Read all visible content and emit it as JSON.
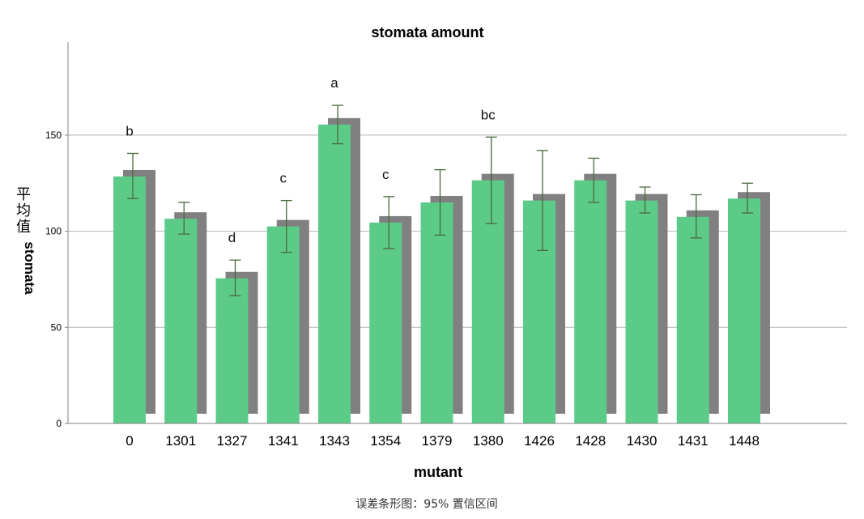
{
  "chart_data": {
    "type": "bar",
    "title": "stomata amount",
    "xlabel": "mutant",
    "ylabel_prefix": "平均值",
    "ylabel_var": "stomata",
    "footnote": "误差条形图：95% 置信区间",
    "ylim": [
      0,
      195
    ],
    "yticks": [
      0,
      50,
      100,
      150
    ],
    "grid": true,
    "categories": [
      "0",
      "1301",
      "1327",
      "1341",
      "1343",
      "1354",
      "1379",
      "1380",
      "1426",
      "1428",
      "1430",
      "1431",
      "1448"
    ],
    "values": [
      128.5,
      106.5,
      75.5,
      102.5,
      155.5,
      104.5,
      115,
      126.5,
      116,
      126.5,
      116,
      107.5,
      117
    ],
    "ci_low": [
      117,
      98.5,
      66.5,
      89,
      145.5,
      91,
      98,
      104,
      90,
      115,
      109.5,
      96.5,
      109.5
    ],
    "ci_high": [
      140.5,
      115,
      85,
      116,
      165.5,
      118,
      132,
      149,
      142,
      138,
      123,
      119,
      125
    ],
    "significance": [
      "b",
      "",
      "d",
      "c",
      "a",
      "c",
      "",
      "bc",
      "",
      "",
      "",
      "",
      ""
    ],
    "colors": {
      "bar": "#5ccb88",
      "shadow": "#808080",
      "errorbar": "#4a6a3a",
      "grid": "#b4b4b4",
      "axis": "#808080"
    }
  }
}
